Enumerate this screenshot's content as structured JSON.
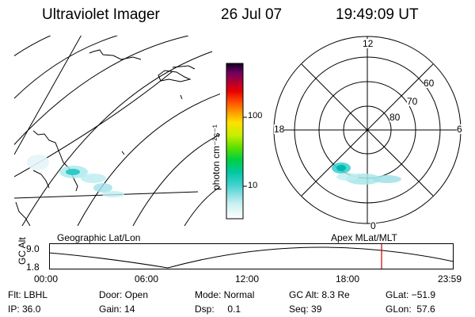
{
  "header": {
    "instrument": "Ultraviolet Imager",
    "date": "26 Jul 07",
    "time": "19:49:09 UT"
  },
  "colorbar": {
    "unit_label": "photon cm⁻²s⁻¹",
    "ticks": [
      "100",
      "10"
    ],
    "colors": [
      "#ffffff",
      "#d8f0f0",
      "#a0e0e8",
      "#40d0d0",
      "#00c8a0",
      "#00d040",
      "#60e000",
      "#c8f000",
      "#ffe000",
      "#ffa000",
      "#ff5000",
      "#e80000",
      "#b00030",
      "#780060",
      "#300050",
      "#000000"
    ]
  },
  "geo_panel": {
    "caption": "Geographic Lat/Lon"
  },
  "polar_panel": {
    "caption": "Apex MLat/MLT",
    "mlt_labels": {
      "top": "12",
      "bottom": "0",
      "left": "18",
      "right": "6"
    },
    "lat_labels": [
      "60",
      "70",
      "80"
    ]
  },
  "altitude_plot": {
    "ylabel": "GC Alt",
    "y_ticks": [
      "9.0",
      "1.8"
    ],
    "x_ticks": [
      "00:00",
      "06:00",
      "12:00",
      "18:00",
      "23:59"
    ],
    "marker_color": "#cc0000"
  },
  "info": {
    "filter": "Flt: LBHL",
    "ip": "IP: 36.0",
    "door": "Door: Open",
    "gain": "Gain: 14",
    "mode": "Mode: Normal",
    "dsp": "Dsp:     0.1",
    "gc_alt": "GC Alt: 8.3 Re",
    "seq": "Seq: 39",
    "glat": "GLat: −51.9",
    "glon": "GLon:  57.6"
  }
}
